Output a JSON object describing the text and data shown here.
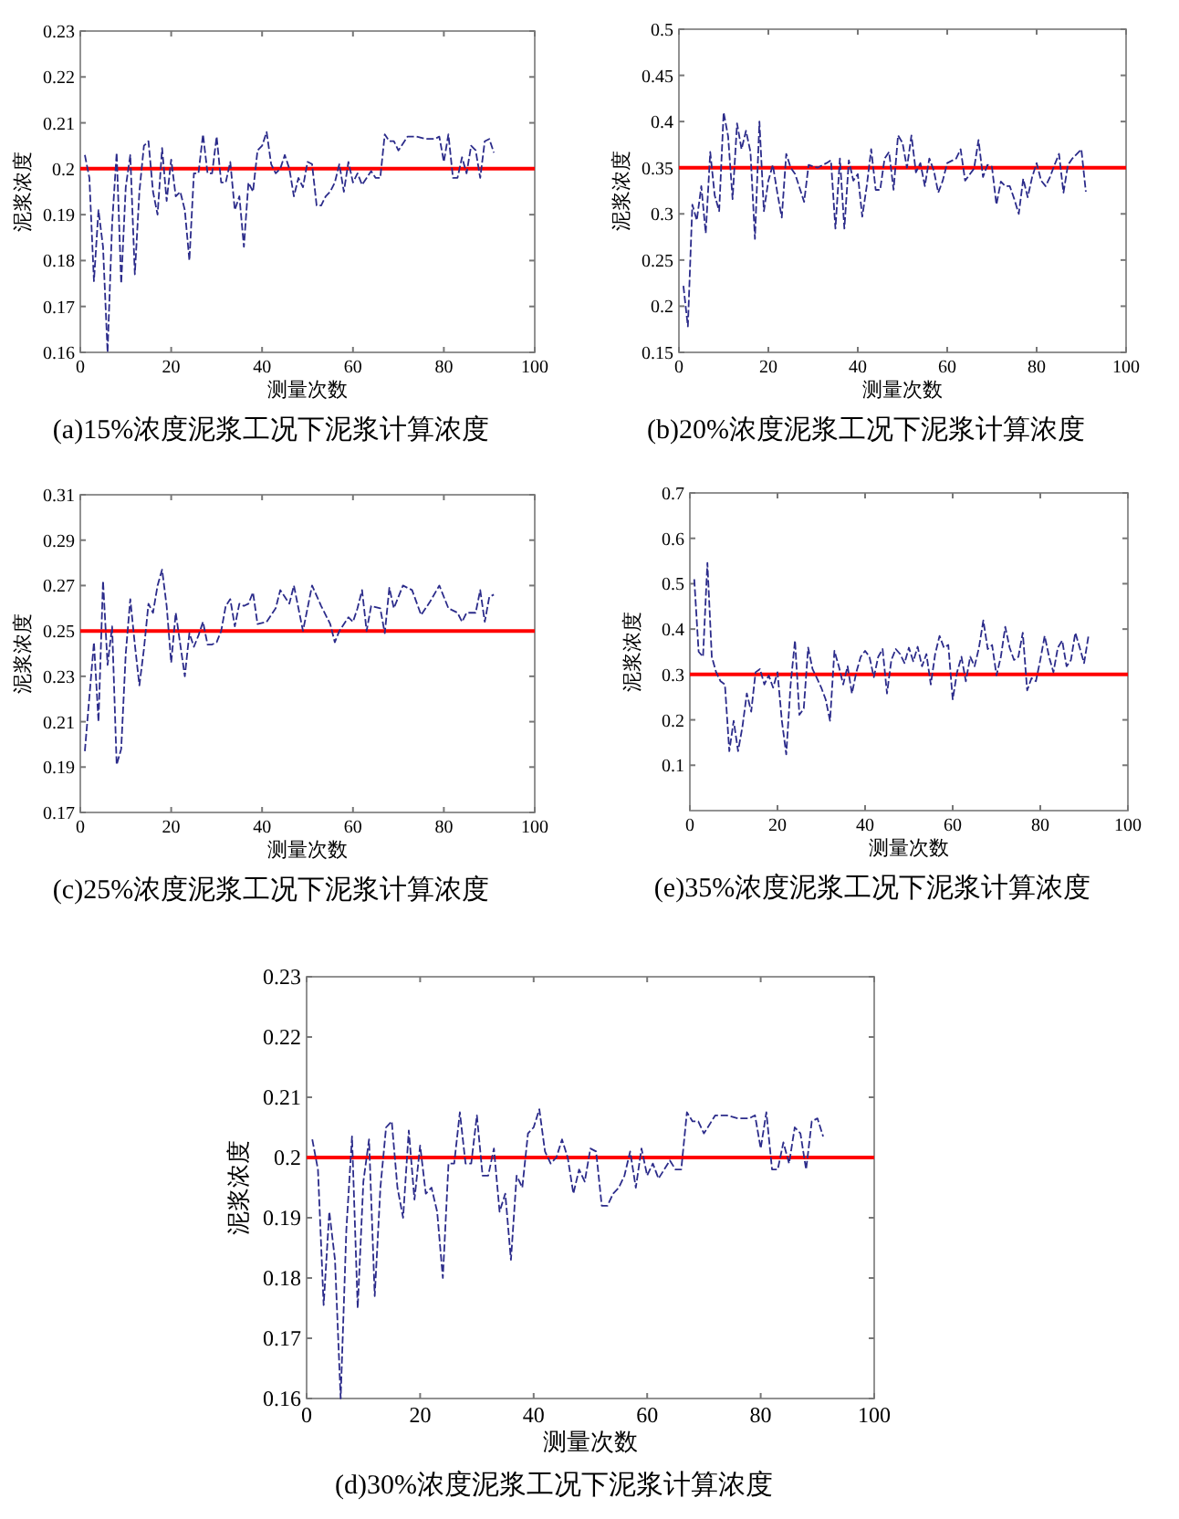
{
  "chart_data": [
    {
      "type": "line",
      "title": "(a)15%浓度泥浆工况下泥浆计算浓度",
      "xlabel": "测量次数",
      "ylabel": "泥浆浓度",
      "xlim": [
        0,
        100
      ],
      "xticks": [
        0,
        20,
        40,
        60,
        80,
        100
      ],
      "ylim": [
        0.16,
        0.23
      ],
      "yticks": [
        0.16,
        0.17,
        0.18,
        0.19,
        0.2,
        0.21,
        0.22,
        0.23
      ],
      "grid": false,
      "line_style": "dashed",
      "series": [
        {
          "color": "#2b2b8a",
          "x": [
            1,
            2,
            3,
            4,
            5,
            6,
            7,
            8,
            9,
            10,
            11,
            12,
            13,
            14,
            15,
            16,
            17,
            18,
            19,
            20,
            21,
            22,
            23,
            24,
            25,
            26,
            27,
            28,
            29,
            30,
            31,
            32,
            33,
            34,
            35,
            36,
            37,
            38,
            39,
            40,
            41,
            42,
            43,
            44,
            45,
            46,
            47,
            48,
            49,
            50,
            51,
            52,
            53,
            54,
            55,
            56,
            57,
            58,
            59,
            60,
            61,
            62,
            63,
            64,
            65,
            66,
            67,
            68,
            69,
            70,
            72,
            74,
            76,
            78,
            79,
            80,
            81,
            82,
            83,
            84,
            85,
            86,
            87,
            88,
            89,
            90,
            91
          ],
          "values": [
            0.203,
            0.198,
            0.1755,
            0.191,
            0.183,
            0.16,
            0.188,
            0.2035,
            0.175,
            0.196,
            0.203,
            0.177,
            0.195,
            0.205,
            0.206,
            0.195,
            0.19,
            0.2045,
            0.193,
            0.202,
            0.194,
            0.195,
            0.191,
            0.18,
            0.199,
            0.199,
            0.2075,
            0.199,
            0.199,
            0.207,
            0.197,
            0.197,
            0.2015,
            0.191,
            0.194,
            0.183,
            0.197,
            0.195,
            0.204,
            0.205,
            0.208,
            0.201,
            0.199,
            0.2,
            0.203,
            0.2,
            0.194,
            0.198,
            0.196,
            0.2015,
            0.201,
            0.192,
            0.192,
            0.194,
            0.195,
            0.197,
            0.201,
            0.195,
            0.2015,
            0.197,
            0.199,
            0.1965,
            0.198,
            0.1995,
            0.198,
            0.198,
            0.2075,
            0.206,
            0.206,
            0.204,
            0.207,
            0.207,
            0.2065,
            0.2065,
            0.207,
            0.2015,
            0.2075,
            0.198,
            0.198,
            0.2025,
            0.199,
            0.205,
            0.204,
            0.198,
            0.206,
            0.2065,
            0.2035
          ]
        }
      ],
      "ref_lines": [
        {
          "axis": "y",
          "value": 0.2,
          "color": "#ff0000"
        }
      ]
    },
    {
      "type": "line",
      "title": "(b)20%浓度泥浆工况下泥浆计算浓度",
      "xlabel": "测量次数",
      "ylabel": "泥浆浓度",
      "xlim": [
        0,
        100
      ],
      "xticks": [
        0,
        20,
        40,
        60,
        80,
        100
      ],
      "ylim": [
        0.15,
        0.5
      ],
      "yticks": [
        0.15,
        0.2,
        0.25,
        0.3,
        0.35,
        0.4,
        0.45,
        0.5
      ],
      "grid": false,
      "line_style": "dashed",
      "series": [
        {
          "color": "#2b2b8a",
          "x": [
            1,
            2,
            3,
            4,
            5,
            6,
            7,
            8,
            9,
            10,
            11,
            12,
            13,
            14,
            15,
            16,
            17,
            18,
            19,
            20,
            21,
            22,
            23,
            24,
            25,
            26,
            28,
            29,
            31,
            33,
            34,
            35,
            36,
            37,
            38,
            39,
            40,
            41,
            42,
            43,
            44,
            45,
            46,
            47,
            48,
            49,
            50,
            51,
            52,
            53,
            54,
            55,
            56,
            57,
            58,
            59,
            60,
            62,
            63,
            64,
            66,
            67,
            68,
            69,
            70,
            71,
            72,
            73,
            74,
            75,
            76,
            77,
            78,
            79,
            80,
            81,
            82,
            83,
            84,
            85,
            86,
            87,
            88,
            89,
            90,
            91
          ],
          "values": [
            0.222,
            0.178,
            0.31,
            0.293,
            0.33,
            0.279,
            0.367,
            0.32,
            0.303,
            0.41,
            0.384,
            0.316,
            0.398,
            0.37,
            0.39,
            0.367,
            0.273,
            0.4,
            0.303,
            0.336,
            0.353,
            0.323,
            0.296,
            0.365,
            0.35,
            0.343,
            0.313,
            0.353,
            0.35,
            0.355,
            0.358,
            0.284,
            0.36,
            0.284,
            0.358,
            0.336,
            0.343,
            0.297,
            0.33,
            0.37,
            0.326,
            0.326,
            0.36,
            0.367,
            0.326,
            0.385,
            0.377,
            0.35,
            0.385,
            0.345,
            0.355,
            0.33,
            0.36,
            0.347,
            0.323,
            0.336,
            0.355,
            0.36,
            0.37,
            0.336,
            0.349,
            0.38,
            0.34,
            0.353,
            0.351,
            0.31,
            0.335,
            0.33,
            0.33,
            0.316,
            0.3,
            0.338,
            0.318,
            0.34,
            0.355,
            0.336,
            0.33,
            0.34,
            0.353,
            0.365,
            0.323,
            0.353,
            0.36,
            0.365,
            0.37,
            0.324
          ]
        }
      ],
      "ref_lines": [
        {
          "axis": "y",
          "value": 0.35,
          "color": "#ff0000"
        }
      ]
    },
    {
      "type": "line",
      "title": "(c)25%浓度泥浆工况下泥浆计算浓度",
      "xlabel": "测量次数",
      "ylabel": "泥浆浓度",
      "xlim": [
        0,
        100
      ],
      "xticks": [
        0,
        20,
        40,
        60,
        80,
        100
      ],
      "ylim": [
        0.17,
        0.31
      ],
      "yticks": [
        0.17,
        0.19,
        0.21,
        0.23,
        0.25,
        0.27,
        0.29,
        0.31
      ],
      "grid": false,
      "line_style": "dashed",
      "series": [
        {
          "color": "#2b2b8a",
          "x": [
            1,
            2,
            3,
            4,
            5,
            6,
            7,
            8,
            9,
            10,
            11,
            12,
            13,
            14,
            15,
            16,
            17,
            18,
            19,
            20,
            21,
            22,
            23,
            24,
            25,
            26,
            27,
            28,
            29,
            30,
            31,
            32,
            33,
            34,
            35,
            36,
            37,
            38,
            39,
            41,
            43,
            44,
            46,
            47,
            49,
            51,
            53,
            55,
            56,
            57,
            59,
            60,
            61,
            62,
            63,
            64,
            66,
            67,
            68,
            69,
            71,
            73,
            75,
            77,
            79,
            81,
            83,
            84,
            85,
            86,
            87,
            88,
            89,
            90,
            91
          ],
          "values": [
            0.197,
            0.221,
            0.245,
            0.21,
            0.272,
            0.235,
            0.252,
            0.191,
            0.198,
            0.24,
            0.264,
            0.244,
            0.226,
            0.242,
            0.262,
            0.258,
            0.27,
            0.277,
            0.261,
            0.236,
            0.258,
            0.244,
            0.23,
            0.249,
            0.243,
            0.248,
            0.254,
            0.244,
            0.244,
            0.245,
            0.25,
            0.261,
            0.264,
            0.252,
            0.262,
            0.261,
            0.262,
            0.267,
            0.253,
            0.254,
            0.26,
            0.268,
            0.262,
            0.27,
            0.25,
            0.27,
            0.261,
            0.253,
            0.245,
            0.25,
            0.256,
            0.254,
            0.26,
            0.268,
            0.25,
            0.261,
            0.26,
            0.249,
            0.269,
            0.26,
            0.27,
            0.268,
            0.257,
            0.263,
            0.27,
            0.26,
            0.258,
            0.254,
            0.258,
            0.258,
            0.258,
            0.268,
            0.254,
            0.265,
            0.266
          ]
        }
      ],
      "ref_lines": [
        {
          "axis": "y",
          "value": 0.25,
          "color": "#ff0000"
        }
      ]
    },
    {
      "type": "line",
      "title": "(e)35%浓度泥浆工况下泥浆计算浓度",
      "xlabel": "测量次数",
      "ylabel": "泥浆浓度",
      "xlim": [
        0,
        100
      ],
      "xticks": [
        0,
        20,
        40,
        60,
        80,
        100
      ],
      "ylim": [
        0,
        0.7
      ],
      "yticks": [
        0.1,
        0.2,
        0.3,
        0.4,
        0.5,
        0.6,
        0.7
      ],
      "grid": false,
      "line_style": "dashed",
      "series": [
        {
          "color": "#2b2b8a",
          "x": [
            1,
            2,
            3,
            4,
            5,
            6,
            7,
            8,
            9,
            10,
            11,
            12,
            13,
            14,
            15,
            16,
            17,
            18,
            19,
            20,
            21,
            22,
            23,
            24,
            25,
            26,
            27,
            28,
            29,
            30,
            31,
            32,
            33,
            34,
            35,
            36,
            37,
            38,
            39,
            40,
            41,
            42,
            43,
            44,
            45,
            46,
            47,
            48,
            49,
            50,
            51,
            52,
            53,
            54,
            55,
            56,
            57,
            58,
            59,
            60,
            61,
            62,
            63,
            64,
            65,
            66,
            67,
            68,
            69,
            70,
            71,
            72,
            73,
            74,
            75,
            76,
            77,
            78,
            79,
            80,
            81,
            82,
            83,
            84,
            85,
            86,
            87,
            88,
            89,
            90,
            91
          ],
          "values": [
            0.51,
            0.35,
            0.339,
            0.546,
            0.339,
            0.305,
            0.285,
            0.278,
            0.131,
            0.198,
            0.131,
            0.185,
            0.258,
            0.218,
            0.305,
            0.312,
            0.278,
            0.298,
            0.271,
            0.305,
            0.198,
            0.124,
            0.278,
            0.375,
            0.211,
            0.225,
            0.359,
            0.312,
            0.292,
            0.271,
            0.245,
            0.198,
            0.352,
            0.318,
            0.278,
            0.318,
            0.258,
            0.305,
            0.339,
            0.352,
            0.339,
            0.294,
            0.339,
            0.356,
            0.258,
            0.332,
            0.356,
            0.345,
            0.325,
            0.359,
            0.329,
            0.361,
            0.318,
            0.345,
            0.278,
            0.345,
            0.385,
            0.359,
            0.365,
            0.245,
            0.305,
            0.339,
            0.285,
            0.339,
            0.318,
            0.359,
            0.419,
            0.356,
            0.365,
            0.298,
            0.339,
            0.405,
            0.359,
            0.332,
            0.339,
            0.392,
            0.265,
            0.292,
            0.285,
            0.332,
            0.385,
            0.339,
            0.305,
            0.359,
            0.375,
            0.318,
            0.332,
            0.392,
            0.359,
            0.325,
            0.385
          ]
        }
      ],
      "ref_lines": [
        {
          "axis": "y",
          "value": 0.3,
          "color": "#ff0000"
        }
      ]
    },
    {
      "type": "line",
      "title": "(d)30%浓度泥浆工况下泥浆计算浓度",
      "xlabel": "测量次数",
      "ylabel": "泥浆浓度",
      "xlim": [
        0,
        100
      ],
      "xticks": [
        0,
        20,
        40,
        60,
        80,
        100
      ],
      "ylim": [
        0.16,
        0.23
      ],
      "yticks": [
        0.16,
        0.17,
        0.18,
        0.19,
        0.2,
        0.21,
        0.22,
        0.23
      ],
      "grid": false,
      "line_style": "dashed",
      "series": [
        {
          "color": "#2b2b8a",
          "x": [
            1,
            2,
            3,
            4,
            5,
            6,
            7,
            8,
            9,
            10,
            11,
            12,
            13,
            14,
            15,
            16,
            17,
            18,
            19,
            20,
            21,
            22,
            23,
            24,
            25,
            26,
            27,
            28,
            29,
            30,
            31,
            32,
            33,
            34,
            35,
            36,
            37,
            38,
            39,
            40,
            41,
            42,
            43,
            44,
            45,
            46,
            47,
            48,
            49,
            50,
            51,
            52,
            53,
            54,
            55,
            56,
            57,
            58,
            59,
            60,
            61,
            62,
            63,
            64,
            65,
            66,
            67,
            68,
            69,
            70,
            72,
            74,
            76,
            78,
            79,
            80,
            81,
            82,
            83,
            84,
            85,
            86,
            87,
            88,
            89,
            90,
            91
          ],
          "values": [
            0.203,
            0.198,
            0.1755,
            0.191,
            0.183,
            0.16,
            0.188,
            0.2035,
            0.175,
            0.196,
            0.203,
            0.177,
            0.195,
            0.205,
            0.206,
            0.195,
            0.19,
            0.2045,
            0.193,
            0.202,
            0.194,
            0.195,
            0.191,
            0.18,
            0.199,
            0.199,
            0.2075,
            0.199,
            0.199,
            0.207,
            0.197,
            0.197,
            0.2015,
            0.191,
            0.194,
            0.183,
            0.197,
            0.195,
            0.204,
            0.205,
            0.208,
            0.201,
            0.199,
            0.2,
            0.203,
            0.2,
            0.194,
            0.198,
            0.196,
            0.2015,
            0.201,
            0.192,
            0.192,
            0.194,
            0.195,
            0.197,
            0.201,
            0.195,
            0.2015,
            0.197,
            0.199,
            0.1965,
            0.198,
            0.1995,
            0.198,
            0.198,
            0.2075,
            0.206,
            0.206,
            0.204,
            0.207,
            0.207,
            0.2065,
            0.2065,
            0.207,
            0.2015,
            0.2075,
            0.198,
            0.198,
            0.2025,
            0.199,
            0.205,
            0.204,
            0.198,
            0.206,
            0.2065,
            0.2035
          ]
        }
      ],
      "ref_lines": [
        {
          "axis": "y",
          "value": 0.2,
          "color": "#ff0000"
        }
      ]
    }
  ]
}
